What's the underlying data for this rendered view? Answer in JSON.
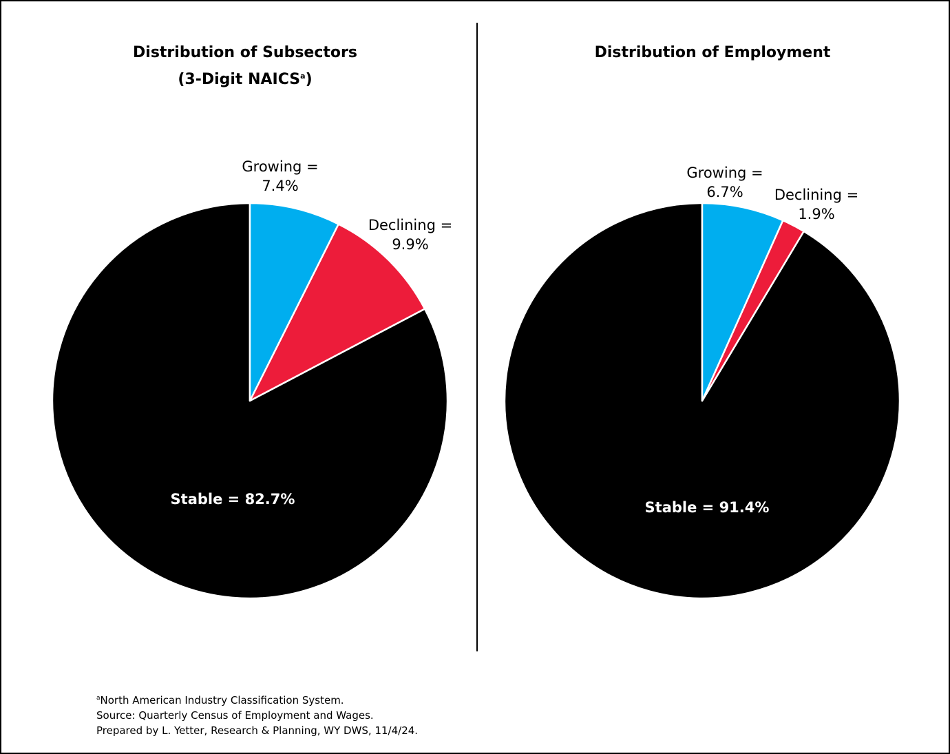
{
  "chart_data": [
    {
      "type": "pie",
      "title": "Distribution of Subsectors",
      "title_line2": "(3-Digit NAICS",
      "title_sup": "a",
      "title_close": ")",
      "slices": [
        {
          "name": "Growing",
          "value": 7.4,
          "color": "#00aeef",
          "label_lines": [
            "Growing =",
            "7.4%"
          ]
        },
        {
          "name": "Declining",
          "value": 9.9,
          "color": "#ed1c3a",
          "label_lines": [
            "Declining =",
            "9.9%"
          ]
        },
        {
          "name": "Stable",
          "value": 82.7,
          "color": "#000000",
          "label_lines": [
            "Stable = 82.7%"
          ]
        }
      ]
    },
    {
      "type": "pie",
      "title": "Distribution of Employment",
      "slices": [
        {
          "name": "Growing",
          "value": 6.7,
          "color": "#00aeef",
          "label_lines": [
            "Growing =",
            "6.7%"
          ]
        },
        {
          "name": "Declining",
          "value": 1.9,
          "color": "#ed1c3a",
          "label_lines": [
            "Declining =",
            "1.9%"
          ]
        },
        {
          "name": "Stable",
          "value": 91.4,
          "color": "#000000",
          "label_lines": [
            "Stable = 91.4%"
          ]
        }
      ]
    }
  ],
  "notes": {
    "footnote_marker": "a",
    "footnote": "North American Industry Classification System.",
    "source": "Source: Quarterly Census of Employment and Wages.",
    "prepared": "Prepared by L. Yetter, Research & Planning, WY DWS, 11/4/24."
  }
}
